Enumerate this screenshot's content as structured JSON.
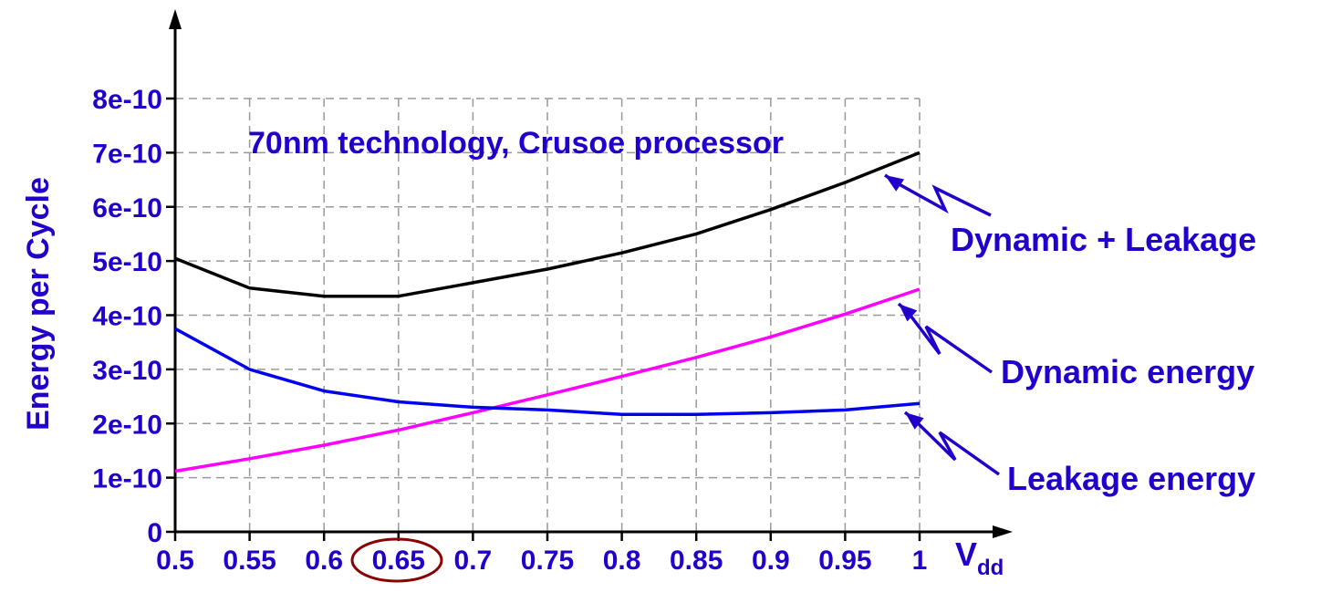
{
  "chart_data": {
    "type": "line",
    "title": "70nm technology, Crusoe processor",
    "xlabel": "V",
    "xlabel_subscript": "dd",
    "ylabel": "Energy per Cycle",
    "x": [
      0.5,
      0.55,
      0.6,
      0.65,
      0.7,
      0.75,
      0.8,
      0.85,
      0.9,
      0.95,
      1
    ],
    "x_tick_labels": [
      "0.5",
      "0.55",
      "0.6",
      "0.65",
      "0.7",
      "0.75",
      "0.8",
      "0.85",
      "0.9",
      "0.95",
      "1"
    ],
    "y_ticks": [
      0,
      1e-10,
      2e-10,
      3e-10,
      4e-10,
      5e-10,
      6e-10,
      7e-10,
      8e-10
    ],
    "y_tick_labels": [
      "0",
      "1e-10",
      "2e-10",
      "3e-10",
      "4e-10",
      "5e-10",
      "6e-10",
      "7e-10",
      "8e-10"
    ],
    "xlim": [
      0.5,
      1
    ],
    "ylim": [
      0,
      8e-10
    ],
    "grid": true,
    "highlighted_x_tick": "0.65",
    "series": [
      {
        "name": "Dynamic + Leakage",
        "color": "#000000",
        "values": [
          5.05e-10,
          4.5e-10,
          4.35e-10,
          4.35e-10,
          4.6e-10,
          4.85e-10,
          5.15e-10,
          5.5e-10,
          5.95e-10,
          6.45e-10,
          7e-10
        ]
      },
      {
        "name": "Dynamic energy",
        "color": "#ff00ff",
        "values": [
          1.12e-10,
          1.35e-10,
          1.6e-10,
          1.88e-10,
          2.2e-10,
          2.53e-10,
          2.87e-10,
          3.22e-10,
          3.6e-10,
          4.02e-10,
          4.48e-10
        ]
      },
      {
        "name": "Leakage energy",
        "color": "#0000ee",
        "values": [
          3.75e-10,
          3e-10,
          2.6e-10,
          2.4e-10,
          2.3e-10,
          2.25e-10,
          2.17e-10,
          2.17e-10,
          2.2e-10,
          2.25e-10,
          2.37e-10
        ]
      }
    ]
  },
  "colors": {
    "text": "#2200cc",
    "axis": "#000000",
    "grid": "#999999",
    "highlight": "#8b0000",
    "arrow": "#2200cc"
  }
}
